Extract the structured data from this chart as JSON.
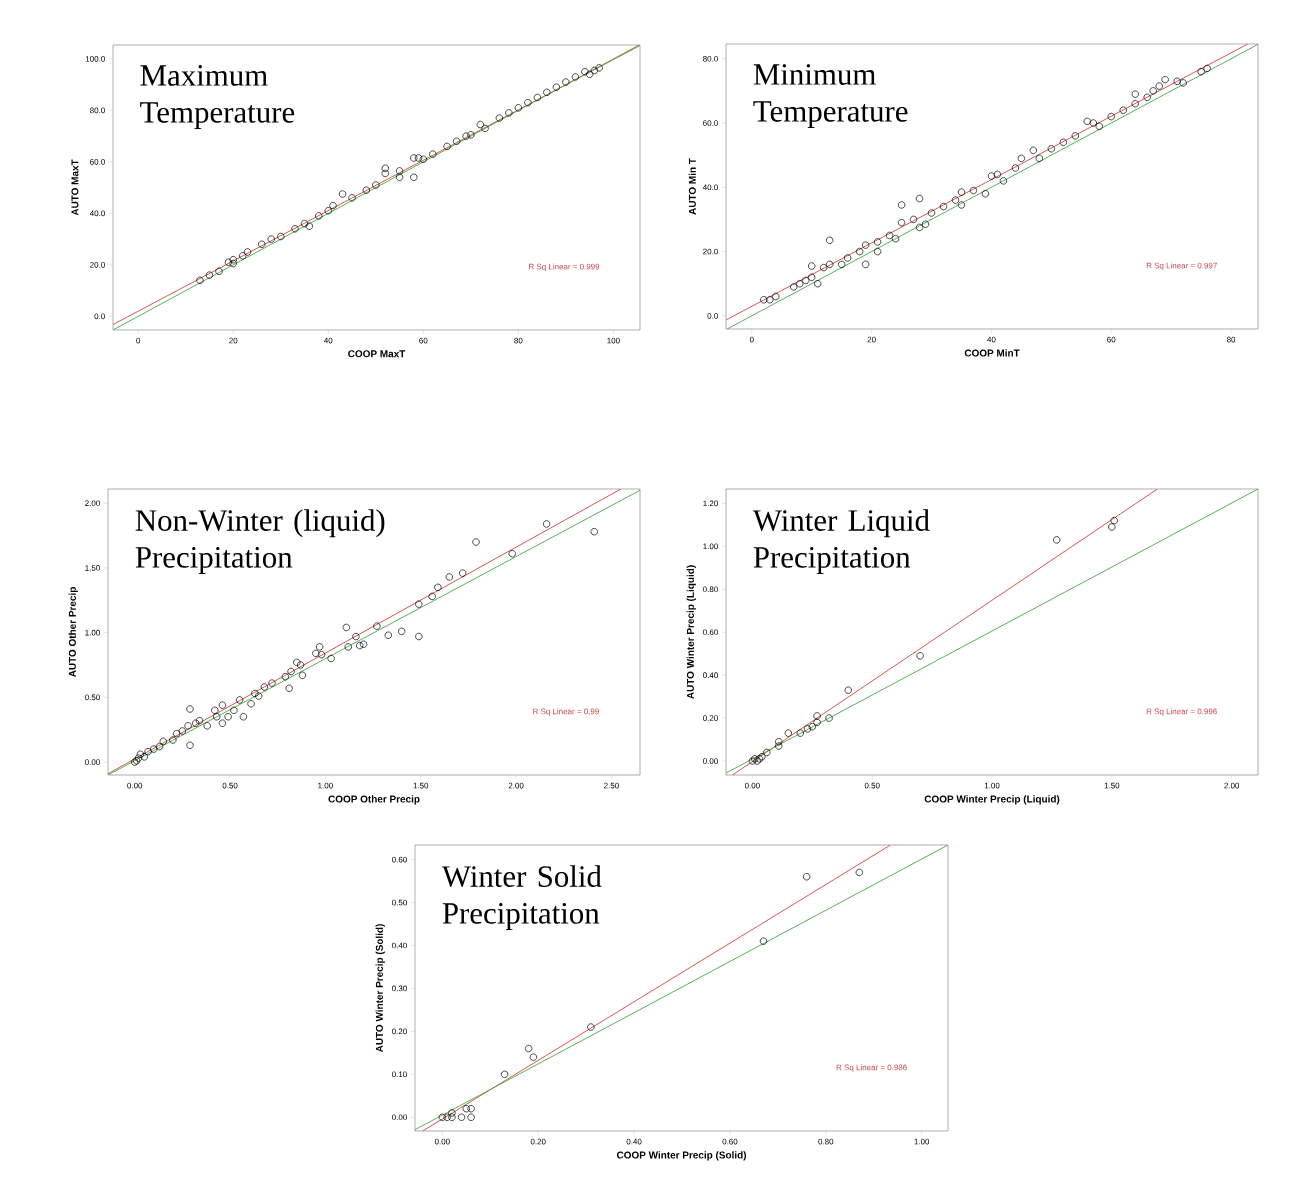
{
  "chart_data": [
    {
      "type": "scatter",
      "title": "Maximum Temperature",
      "xlabel": "COOP MaxT",
      "ylabel": "AUTO MaxT",
      "annotations": [
        "R Sq Linear = 0.999"
      ],
      "xlim": [
        -5.3,
        105.6
      ],
      "ylim": [
        -5.3,
        105.4
      ],
      "xticks": [
        0,
        20,
        40,
        60,
        80,
        100
      ],
      "yticks": [
        {
          "value": 0,
          "label": "0.0"
        },
        {
          "value": 20,
          "label": "20.0"
        },
        {
          "value": 40,
          "label": "40.0"
        },
        {
          "value": 60,
          "label": "60.0"
        },
        {
          "value": 80,
          "label": "80.0"
        },
        {
          "value": 100,
          "label": "100.0"
        }
      ],
      "series": [
        {
          "type": "scatter",
          "marker": "circle",
          "color": "#000000",
          "x": [
            13,
            15,
            17,
            19,
            20,
            20,
            22,
            23,
            26,
            28,
            30,
            33,
            35,
            36,
            38,
            40,
            41,
            43,
            45,
            48,
            50,
            52,
            52,
            55,
            55,
            58,
            58,
            59,
            60,
            62,
            65,
            67,
            69,
            70,
            72,
            73,
            76,
            78,
            80,
            82,
            84,
            86,
            88,
            90,
            92,
            94,
            95,
            96,
            97
          ],
          "values": [
            14,
            16,
            17.5,
            21,
            22,
            20.5,
            23.5,
            25,
            28,
            30,
            31,
            34,
            36,
            35,
            39,
            41,
            43,
            47.5,
            46,
            49,
            51,
            57.5,
            55.5,
            56.5,
            54,
            61.5,
            54,
            61.5,
            61,
            63,
            66,
            68,
            70,
            70.5,
            74.5,
            73,
            77,
            79,
            81,
            83,
            85,
            87,
            89,
            91,
            93,
            95,
            94,
            95.5,
            96.5
          ]
        },
        {
          "type": "line",
          "marker": "none",
          "color": "#d9423f",
          "x": [
            -5.3,
            105.6
          ],
          "values": [
            -3.2,
            105.2
          ]
        },
        {
          "type": "line",
          "marker": "none",
          "color": "#3cae3c",
          "x": [
            -5.3,
            105.4
          ],
          "values": [
            -5.3,
            105.4
          ]
        }
      ]
    },
    {
      "type": "scatter",
      "title": "Minimum Temperature",
      "xlabel": "COOP MinT",
      "ylabel": "AUTO Min T",
      "annotations": [
        "R Sq Linear = 0.997"
      ],
      "xlim": [
        -4.3,
        84.5
      ],
      "ylim": [
        -4.1,
        84.6
      ],
      "xticks": [
        0,
        20,
        40,
        60,
        80
      ],
      "yticks": [
        {
          "value": 0,
          "label": "0.0"
        },
        {
          "value": 20,
          "label": "20.0"
        },
        {
          "value": 40,
          "label": "40.0"
        },
        {
          "value": 60,
          "label": "60.0"
        },
        {
          "value": 80,
          "label": "80.0"
        }
      ],
      "series": [
        {
          "type": "scatter",
          "marker": "circle",
          "color": "#000000",
          "x": [
            2,
            3,
            4,
            7,
            8,
            9,
            10,
            10,
            11,
            12,
            13,
            13,
            15,
            16,
            18,
            19,
            19,
            21,
            21,
            23,
            24,
            25,
            25,
            27,
            28,
            28,
            29,
            30,
            32,
            34,
            35,
            35,
            37,
            39,
            40,
            41,
            42,
            44,
            45,
            47,
            48,
            50,
            52,
            54,
            56,
            57,
            58,
            60,
            62,
            64,
            64,
            66,
            67,
            68,
            69,
            71,
            72,
            75,
            76
          ],
          "values": [
            5,
            5,
            6,
            9,
            10,
            11,
            12,
            15.5,
            10,
            15,
            23.5,
            16,
            16,
            18,
            20,
            16,
            22,
            20,
            23,
            25,
            24,
            34.5,
            29,
            30,
            36.5,
            27.5,
            28.5,
            32,
            34,
            36,
            38.5,
            34.5,
            39,
            38,
            43.5,
            44,
            42,
            46,
            49,
            51.5,
            49,
            52,
            54,
            56,
            60.5,
            60,
            59,
            62,
            64,
            69,
            66,
            68,
            70,
            71.5,
            73.5,
            73,
            72.5,
            76,
            77
          ]
        },
        {
          "type": "line",
          "marker": "none",
          "color": "#d9423f",
          "x": [
            -4.3,
            82.8
          ],
          "values": [
            -1.3,
            84.6
          ]
        },
        {
          "type": "line",
          "marker": "none",
          "color": "#3cae3c",
          "x": [
            -4.1,
            84.5
          ],
          "values": [
            -4.1,
            84.5
          ]
        }
      ]
    },
    {
      "type": "scatter",
      "title": "Non-Winter (liquid) Precipitation",
      "xlabel": "COOP Other Precip",
      "ylabel": "AUTO Other Precip",
      "annotations": [
        "R Sq Linear = 0.99"
      ],
      "xlim": [
        -0.14,
        2.65
      ],
      "ylim": [
        -0.1,
        2.11
      ],
      "xticks": [
        {
          "value": 0,
          "label": "0.00"
        },
        {
          "value": 0.5,
          "label": "0.50"
        },
        {
          "value": 1,
          "label": "1.00"
        },
        {
          "value": 1.5,
          "label": "1.50"
        },
        {
          "value": 2,
          "label": "2.00"
        },
        {
          "value": 2.5,
          "label": "2.50"
        }
      ],
      "yticks": [
        {
          "value": 0,
          "label": "0.00"
        },
        {
          "value": 0.5,
          "label": "0.50"
        },
        {
          "value": 1,
          "label": "1.00"
        },
        {
          "value": 1.5,
          "label": "1.50"
        },
        {
          "value": 2,
          "label": "2.00"
        }
      ],
      "series": [
        {
          "type": "scatter",
          "marker": "circle",
          "color": "#000000",
          "x": [
            0,
            0.01,
            0.02,
            0.03,
            0.05,
            0.07,
            0.1,
            0.13,
            0.15,
            0.2,
            0.22,
            0.25,
            0.28,
            0.29,
            0.29,
            0.32,
            0.34,
            0.38,
            0.42,
            0.43,
            0.46,
            0.46,
            0.49,
            0.52,
            0.55,
            0.57,
            0.61,
            0.63,
            0.65,
            0.68,
            0.72,
            0.79,
            0.81,
            0.82,
            0.85,
            0.87,
            0.88,
            0.95,
            0.97,
            0.98,
            1.03,
            1.11,
            1.12,
            1.16,
            1.18,
            1.2,
            1.27,
            1.33,
            1.4,
            1.49,
            1.49,
            1.56,
            1.59,
            1.65,
            1.72,
            1.79,
            1.98,
            2.16,
            2.41
          ],
          "values": [
            0,
            0.01,
            0.03,
            0.06,
            0.04,
            0.08,
            0.1,
            0.12,
            0.16,
            0.17,
            0.22,
            0.24,
            0.28,
            0.41,
            0.13,
            0.3,
            0.32,
            0.28,
            0.4,
            0.35,
            0.44,
            0.3,
            0.35,
            0.4,
            0.48,
            0.35,
            0.45,
            0.53,
            0.51,
            0.58,
            0.61,
            0.66,
            0.57,
            0.7,
            0.77,
            0.75,
            0.67,
            0.84,
            0.89,
            0.83,
            0.8,
            1.04,
            0.89,
            0.97,
            0.9,
            0.91,
            1.05,
            0.98,
            1.01,
            1.22,
            0.97,
            1.28,
            1.35,
            1.43,
            1.46,
            1.7,
            1.61,
            1.84,
            1.78
          ]
        },
        {
          "type": "line",
          "marker": "none",
          "color": "#d9423f",
          "x": [
            -0.14,
            2.55
          ],
          "values": [
            -0.09,
            2.11
          ]
        },
        {
          "type": "line",
          "marker": "none",
          "color": "#3cae3c",
          "x": [
            -0.14,
            2.65
          ],
          "values": [
            -0.1,
            2.1
          ]
        }
      ]
    },
    {
      "type": "scatter",
      "title": "Winter Liquid Precipitation",
      "xlabel": "COOP Winter Precip (Liquid)",
      "ylabel": "AUTO Winter Precip (Liquid)",
      "annotations": [
        "R Sq Linear = 0.996"
      ],
      "xlim": [
        -0.11,
        2.11
      ],
      "ylim": [
        -0.065,
        1.267
      ],
      "xticks": [
        {
          "value": 0,
          "label": "0.00"
        },
        {
          "value": 0.5,
          "label": "0.50"
        },
        {
          "value": 1,
          "label": "1.00"
        },
        {
          "value": 1.5,
          "label": "1.50"
        },
        {
          "value": 2,
          "label": "2.00"
        }
      ],
      "yticks": [
        {
          "value": 0,
          "label": "0.00"
        },
        {
          "value": 0.2,
          "label": "0.20"
        },
        {
          "value": 0.4,
          "label": "0.40"
        },
        {
          "value": 0.6,
          "label": "0.60"
        },
        {
          "value": 0.8,
          "label": "0.80"
        },
        {
          "value": 1,
          "label": "1.00"
        },
        {
          "value": 1.2,
          "label": "1.20"
        }
      ],
      "series": [
        {
          "type": "scatter",
          "marker": "circle",
          "color": "#000000",
          "x": [
            0,
            0.01,
            0.02,
            0.03,
            0.04,
            0.06,
            0.11,
            0.11,
            0.15,
            0.2,
            0.23,
            0.25,
            0.27,
            0.27,
            0.32,
            0.4,
            0.7,
            1.27,
            1.5,
            1.51
          ],
          "values": [
            0,
            0.01,
            0,
            0.01,
            0.02,
            0.04,
            0.09,
            0.07,
            0.13,
            0.13,
            0.15,
            0.16,
            0.18,
            0.21,
            0.2,
            0.33,
            0.49,
            1.03,
            1.09,
            1.12
          ]
        },
        {
          "type": "line",
          "marker": "none",
          "color": "#d9423f",
          "x": [
            -0.083,
            1.69
          ],
          "values": [
            -0.065,
            1.267
          ]
        },
        {
          "type": "line",
          "marker": "none",
          "color": "#3cae3c",
          "x": [
            -0.11,
            2.11
          ],
          "values": [
            -0.056,
            1.267
          ]
        }
      ]
    },
    {
      "type": "scatter",
      "title": "Winter Solid Precipitation",
      "xlabel": "COOP Winter Precip (Solid)",
      "ylabel": "AUTO Winter Precip (Solid)",
      "annotations": [
        "R Sq Linear = 0.986"
      ],
      "xlim": [
        -0.057,
        1.055
      ],
      "ylim": [
        -0.032,
        0.634
      ],
      "xticks": [
        {
          "value": 0,
          "label": "0.00"
        },
        {
          "value": 0.2,
          "label": "0.20"
        },
        {
          "value": 0.4,
          "label": "0.40"
        },
        {
          "value": 0.6,
          "label": "0.60"
        },
        {
          "value": 0.8,
          "label": "0.80"
        },
        {
          "value": 1,
          "label": "1.00"
        }
      ],
      "yticks": [
        {
          "value": 0,
          "label": "0.00"
        },
        {
          "value": 0.1,
          "label": "0.10"
        },
        {
          "value": 0.2,
          "label": "0.20"
        },
        {
          "value": 0.3,
          "label": "0.30"
        },
        {
          "value": 0.4,
          "label": "0.40"
        },
        {
          "value": 0.5,
          "label": "0.50"
        },
        {
          "value": 0.6,
          "label": "0.60"
        }
      ],
      "series": [
        {
          "type": "scatter",
          "marker": "circle",
          "color": "#000000",
          "x": [
            0,
            0.01,
            0.02,
            0.02,
            0.04,
            0.05,
            0.06,
            0.06,
            0.13,
            0.18,
            0.19,
            0.31,
            0.67,
            0.76,
            0.87
          ],
          "values": [
            0,
            0,
            0.01,
            0,
            0,
            0.02,
            0.02,
            0,
            0.1,
            0.16,
            0.14,
            0.21,
            0.41,
            0.56,
            0.57
          ]
        },
        {
          "type": "line",
          "marker": "none",
          "color": "#d9423f",
          "x": [
            -0.041,
            0.935
          ],
          "values": [
            -0.032,
            0.634
          ]
        },
        {
          "type": "line",
          "marker": "none",
          "color": "#3cae3c",
          "x": [
            -0.057,
            1.055
          ],
          "values": [
            -0.029,
            0.634
          ]
        }
      ]
    }
  ]
}
